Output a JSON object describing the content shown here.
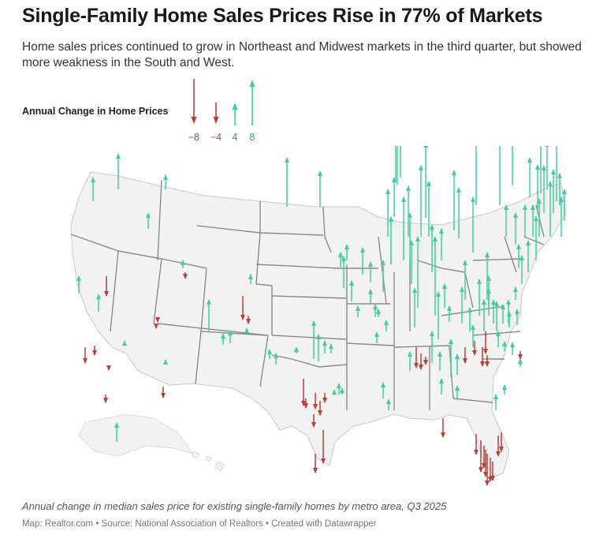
{
  "title": "Single-Family Home Sales Prices Rise in 77% of Markets",
  "subtitle": "Home sales prices continued to grow in Northeast and Midwest markets in the third quarter, but showed more weakness in the South and West.",
  "legend": {
    "title": "Annual Change in Home Prices",
    "items": [
      {
        "label": "−8",
        "value": -8
      },
      {
        "label": "−4",
        "value": -4
      },
      {
        "label": "4",
        "value": 4
      },
      {
        "label": "8",
        "value": 8
      }
    ]
  },
  "colors": {
    "increase": "#3fcf9f",
    "decrease": "#b8403b",
    "land": "#f2f2f2",
    "border": "#8a8a8a"
  },
  "caption": "Annual change in median sales price for existing single-family homes by metro area, Q3 2025",
  "source": "Map: Realtor.com • Source: National Association of Realtors • Created with Datawrapper"
}
